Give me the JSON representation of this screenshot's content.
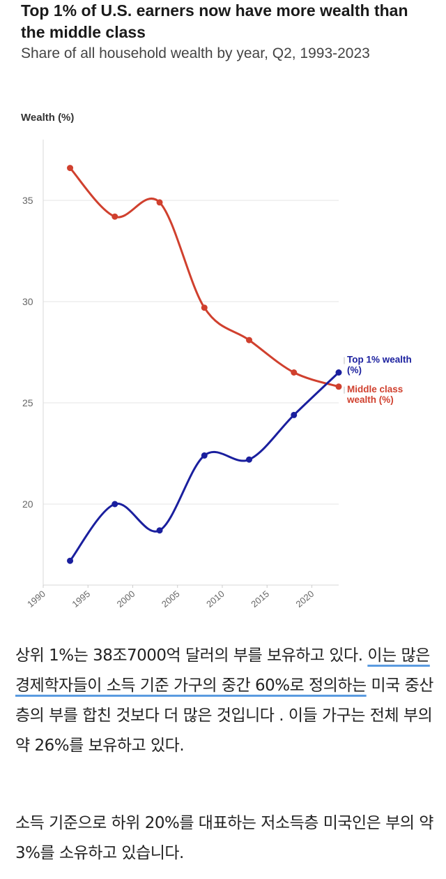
{
  "chart_data": {
    "type": "line",
    "title": "Top 1% of U.S. earners now have more wealth than the middle class",
    "subtitle": "Share of all household wealth by year, Q2, 1993-2023",
    "ylabel": "Wealth (%)",
    "xlabel": "",
    "xlim": [
      1990,
      2023
    ],
    "ylim": [
      16,
      38
    ],
    "x_ticks": [
      "1990",
      "1995",
      "2000",
      "2005",
      "2010",
      "2015",
      "2020"
    ],
    "y_ticks": [
      "20",
      "25",
      "30",
      "35"
    ],
    "grid": true,
    "series": [
      {
        "name": "Middle class wealth (%)",
        "label_lines": [
          "Middle class",
          "wealth (%)"
        ],
        "color": "#d0402e",
        "x": [
          1993,
          1998,
          2003,
          2008,
          2013,
          2018,
          2023
        ],
        "values": [
          36.6,
          34.2,
          34.9,
          29.7,
          28.1,
          26.5,
          25.8
        ]
      },
      {
        "name": "Top 1% wealth (%)",
        "label_lines": [
          "Top 1% wealth",
          "(%)"
        ],
        "color": "#1a1f9e",
        "x": [
          1993,
          1998,
          2003,
          2008,
          2013,
          2018,
          2023
        ],
        "values": [
          17.2,
          20.0,
          18.7,
          22.4,
          22.2,
          24.4,
          26.5
        ]
      }
    ]
  },
  "text": {
    "p1_before": "상위 1%는 38조7000억 달러의 부를 보유하고 있다. ",
    "p1_underlined": "이는 많은 경제학자들이 소득 기준 가구의 중간 60%로 정의하는",
    "p1_after": " 미국 중산층의 부를 합친 것보다 더 많은 것입니다 . 이들 가구는 전체 부의 약 26%를 보유하고 있다.",
    "p2": "소득 기준으로 하위 20%를 대표하는 저소득층 미국인은 부의 약 3%를 소유하고 있습니다."
  }
}
